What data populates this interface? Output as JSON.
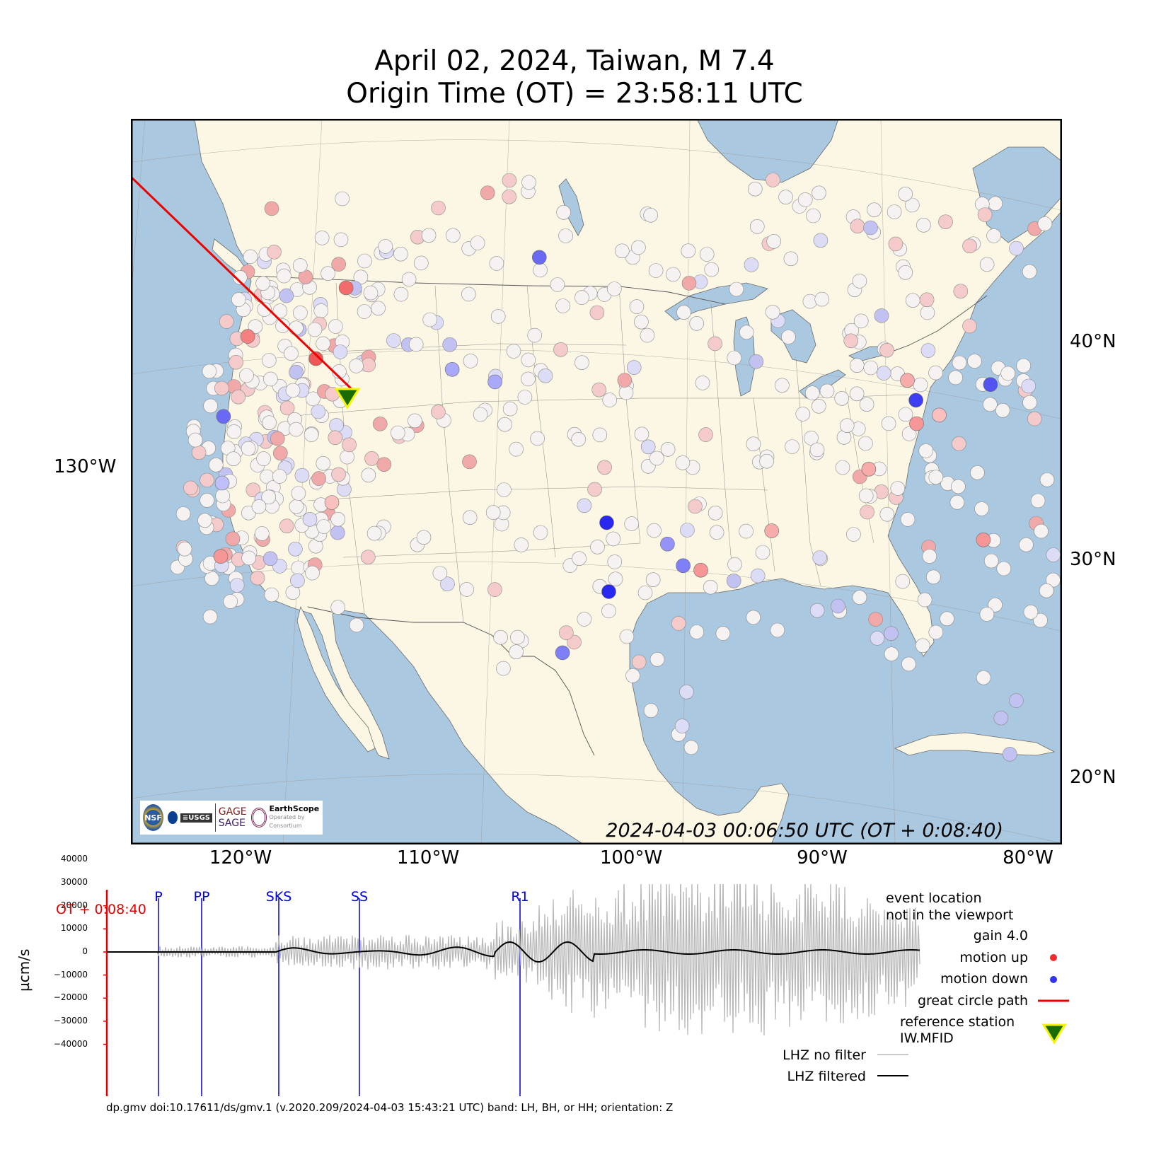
{
  "title": {
    "line1": "April 02, 2024, Taiwan, M 7.4",
    "line2": "Origin Time (OT) = 23:58:11 UTC"
  },
  "map": {
    "lat_labels": [
      "40°N",
      "30°N",
      "20°N"
    ],
    "lon_labels": [
      "120°W",
      "110°W",
      "100°W",
      "90°W",
      "80°W"
    ],
    "lon_label_left": "130°W",
    "timestamp": "2024-04-03 00:06:50 UTC (OT + 0:08:40)",
    "colors": {
      "land": "#fcf7e4",
      "ocean": "#aac8e0",
      "motion_up": "#ee2c2c",
      "motion_down": "#3333ee",
      "path": "#ee0000"
    },
    "logos": {
      "seal_text": "NSF",
      "gage": "GAGE",
      "sage": "SAGE",
      "earthscope": "EarthScope",
      "earthscope_sub": "Operated by  Consortium"
    },
    "reference_station": {
      "lon": -113.3,
      "lat": 43.2
    },
    "highlight_stations": [
      {
        "lon": -117.0,
        "lat": 47.5,
        "m": 0.7
      },
      {
        "lon": -117.9,
        "lat": 44.3,
        "m": 0.8
      },
      {
        "lon": -122.5,
        "lat": 45.8,
        "m": 0.6
      },
      {
        "lon": -122.6,
        "lat": 42.1,
        "m": -0.7
      },
      {
        "lon": -121.6,
        "lat": 38.9,
        "m": -0.3
      },
      {
        "lon": -120.6,
        "lat": 35.4,
        "m": 0.5
      },
      {
        "lon": -115.2,
        "lat": 37.4,
        "m": 0.3
      },
      {
        "lon": -105.0,
        "lat": 48.2,
        "m": -0.7
      },
      {
        "lon": -100.3,
        "lat": 35.8,
        "m": -1.0
      },
      {
        "lon": -100.1,
        "lat": 32.6,
        "m": -1.0
      },
      {
        "lon": -102.3,
        "lat": 29.8,
        "m": -0.6
      },
      {
        "lon": -96.3,
        "lat": 33.8,
        "m": -0.6
      },
      {
        "lon": -95.4,
        "lat": 33.6,
        "m": 0.5
      },
      {
        "lon": -97.1,
        "lat": 34.8,
        "m": -0.5
      },
      {
        "lon": -82.7,
        "lat": 42.0,
        "m": -0.9
      },
      {
        "lon": -78.1,
        "lat": 43.1,
        "m": -0.8
      },
      {
        "lon": -83.0,
        "lat": 42.9,
        "m": 0.4
      },
      {
        "lon": -82.9,
        "lat": 40.9,
        "m": 0.5
      },
      {
        "lon": -81.5,
        "lat": 41.4,
        "m": 0.3
      },
      {
        "lon": -86.0,
        "lat": 38.6,
        "m": 0.4
      },
      {
        "lon": -80.4,
        "lat": 35.7,
        "m": 0.5
      },
      {
        "lon": -91.6,
        "lat": 35.5,
        "m": 0.4
      },
      {
        "lon": -107.0,
        "lat": 42.5,
        "m": -0.4
      },
      {
        "lon": -109.6,
        "lat": 43.2,
        "m": -0.4
      }
    ]
  },
  "waveform": {
    "ylabel": "µcm/s",
    "yticks": [
      "40000",
      "30000",
      "20000",
      "10000",
      "0",
      "−10000",
      "−20000",
      "−30000",
      "−40000"
    ],
    "ot_marker": "OT + 0:08:40",
    "phases": [
      "P",
      "PP",
      "SKS",
      "SS",
      "R1"
    ]
  },
  "legend": {
    "event_line1": "event location",
    "event_line2": "not in the viewport",
    "gain": "gain  4.0",
    "motion_up": "motion up",
    "motion_down": "motion down",
    "great_circle": "great circle path",
    "ref_station": "reference station",
    "ref_station_code": "IW.MFID",
    "lhz_no_filter": "LHZ no filter",
    "lhz_filtered": "LHZ filtered"
  },
  "footer": "dp.gmv doi:10.17611/ds/gmv.1 (v.2020.209/2024-04-03 15:43:21 UTC) band: LH, BH, or HH; orientation: Z"
}
